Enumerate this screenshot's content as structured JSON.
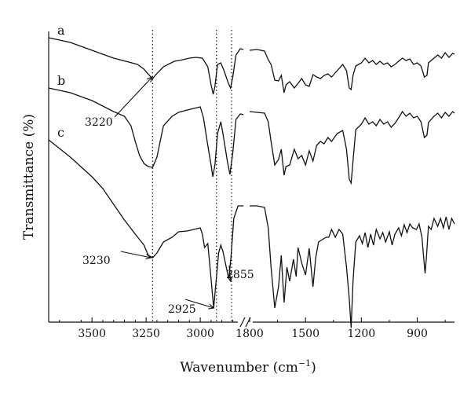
{
  "chart_data": {
    "type": "line",
    "xlabel": "Wavenumber (cm",
    "xlabel_sup": "−1",
    "xlabel_end": ")",
    "ylabel": "Transmittance (%)",
    "x_axis_break": true,
    "left_segment": {
      "xlim": [
        3700,
        2790
      ],
      "ticks": [
        3500,
        3250,
        3000
      ],
      "tick_labels": [
        "3500",
        "3250",
        "3000"
      ]
    },
    "right_segment": {
      "xlim": [
        1800,
        700
      ],
      "ticks": [
        1800,
        1500,
        1200,
        900
      ],
      "tick_labels": [
        "1800",
        "1500",
        "1200",
        "900"
      ]
    },
    "reference_lines": [
      3220,
      2925,
      2855
    ],
    "series": [
      {
        "name": "a",
        "left": [
          [
            3700,
            8
          ],
          [
            3600,
            14
          ],
          [
            3500,
            24
          ],
          [
            3400,
            34
          ],
          [
            3330,
            39
          ],
          [
            3290,
            42
          ],
          [
            3260,
            48
          ],
          [
            3235,
            56
          ],
          [
            3220,
            60
          ],
          [
            3205,
            55
          ],
          [
            3170,
            45
          ],
          [
            3120,
            38
          ],
          [
            3080,
            36
          ],
          [
            3050,
            34
          ],
          [
            3020,
            33
          ],
          [
            2990,
            34
          ],
          [
            2965,
            45
          ],
          [
            2950,
            68
          ],
          [
            2940,
            80
          ],
          [
            2932,
            70
          ],
          [
            2920,
            42
          ],
          [
            2905,
            40
          ],
          [
            2890,
            50
          ],
          [
            2870,
            66
          ],
          [
            2860,
            72
          ],
          [
            2850,
            58
          ],
          [
            2835,
            30
          ],
          [
            2815,
            22
          ],
          [
            2800,
            23
          ]
        ],
        "right": [
          [
            1800,
            24
          ],
          [
            1760,
            23
          ],
          [
            1720,
            25
          ],
          [
            1700,
            36
          ],
          [
            1685,
            42
          ],
          [
            1665,
            62
          ],
          [
            1645,
            63
          ],
          [
            1630,
            56
          ],
          [
            1615,
            78
          ],
          [
            1605,
            68
          ],
          [
            1585,
            64
          ],
          [
            1560,
            72
          ],
          [
            1540,
            66
          ],
          [
            1520,
            60
          ],
          [
            1500,
            68
          ],
          [
            1480,
            70
          ],
          [
            1460,
            55
          ],
          [
            1440,
            58
          ],
          [
            1420,
            60
          ],
          [
            1400,
            56
          ],
          [
            1380,
            54
          ],
          [
            1360,
            58
          ],
          [
            1330,
            50
          ],
          [
            1300,
            42
          ],
          [
            1280,
            50
          ],
          [
            1265,
            72
          ],
          [
            1255,
            74
          ],
          [
            1245,
            56
          ],
          [
            1230,
            44
          ],
          [
            1200,
            40
          ],
          [
            1180,
            34
          ],
          [
            1160,
            40
          ],
          [
            1140,
            37
          ],
          [
            1120,
            42
          ],
          [
            1100,
            38
          ],
          [
            1080,
            42
          ],
          [
            1060,
            40
          ],
          [
            1040,
            45
          ],
          [
            1020,
            42
          ],
          [
            1000,
            38
          ],
          [
            980,
            34
          ],
          [
            960,
            37
          ],
          [
            940,
            35
          ],
          [
            920,
            42
          ],
          [
            900,
            40
          ],
          [
            880,
            44
          ],
          [
            862,
            58
          ],
          [
            848,
            56
          ],
          [
            840,
            40
          ],
          [
            810,
            34
          ],
          [
            790,
            30
          ],
          [
            770,
            34
          ],
          [
            750,
            27
          ],
          [
            730,
            33
          ],
          [
            710,
            28
          ],
          [
            700,
            29
          ]
        ]
      },
      {
        "name": "b",
        "left": [
          [
            3700,
            72
          ],
          [
            3600,
            78
          ],
          [
            3500,
            88
          ],
          [
            3450,
            95
          ],
          [
            3400,
            102
          ],
          [
            3350,
            108
          ],
          [
            3320,
            120
          ],
          [
            3300,
            140
          ],
          [
            3280,
            158
          ],
          [
            3260,
            168
          ],
          [
            3240,
            172
          ],
          [
            3220,
            173
          ],
          [
            3200,
            160
          ],
          [
            3170,
            120
          ],
          [
            3130,
            108
          ],
          [
            3100,
            103
          ],
          [
            3060,
            100
          ],
          [
            3030,
            98
          ],
          [
            3000,
            96
          ],
          [
            2985,
            110
          ],
          [
            2965,
            145
          ],
          [
            2950,
            170
          ],
          [
            2942,
            185
          ],
          [
            2932,
            170
          ],
          [
            2920,
            130
          ],
          [
            2905,
            115
          ],
          [
            2895,
            130
          ],
          [
            2875,
            165
          ],
          [
            2863,
            182
          ],
          [
            2850,
            155
          ],
          [
            2835,
            112
          ],
          [
            2815,
            105
          ],
          [
            2800,
            106
          ]
        ],
        "right": [
          [
            1800,
            102
          ],
          [
            1760,
            103
          ],
          [
            1720,
            104
          ],
          [
            1700,
            115
          ],
          [
            1685,
            140
          ],
          [
            1665,
            170
          ],
          [
            1645,
            163
          ],
          [
            1630,
            150
          ],
          [
            1615,
            183
          ],
          [
            1605,
            172
          ],
          [
            1585,
            170
          ],
          [
            1560,
            150
          ],
          [
            1540,
            162
          ],
          [
            1520,
            158
          ],
          [
            1500,
            170
          ],
          [
            1480,
            152
          ],
          [
            1460,
            165
          ],
          [
            1440,
            145
          ],
          [
            1420,
            140
          ],
          [
            1400,
            143
          ],
          [
            1380,
            135
          ],
          [
            1360,
            140
          ],
          [
            1330,
            130
          ],
          [
            1300,
            126
          ],
          [
            1280,
            150
          ],
          [
            1265,
            188
          ],
          [
            1255,
            193
          ],
          [
            1245,
            165
          ],
          [
            1230,
            125
          ],
          [
            1200,
            118
          ],
          [
            1180,
            110
          ],
          [
            1160,
            118
          ],
          [
            1140,
            115
          ],
          [
            1120,
            120
          ],
          [
            1100,
            112
          ],
          [
            1080,
            118
          ],
          [
            1060,
            115
          ],
          [
            1040,
            122
          ],
          [
            1020,
            117
          ],
          [
            1000,
            110
          ],
          [
            980,
            102
          ],
          [
            960,
            108
          ],
          [
            940,
            104
          ],
          [
            920,
            110
          ],
          [
            900,
            108
          ],
          [
            880,
            115
          ],
          [
            862,
            135
          ],
          [
            848,
            132
          ],
          [
            840,
            116
          ],
          [
            810,
            108
          ],
          [
            790,
            104
          ],
          [
            770,
            110
          ],
          [
            750,
            103
          ],
          [
            730,
            108
          ],
          [
            710,
            102
          ],
          [
            700,
            104
          ]
        ]
      },
      {
        "name": "c",
        "left": [
          [
            3700,
            138
          ],
          [
            3600,
            160
          ],
          [
            3500,
            185
          ],
          [
            3450,
            200
          ],
          [
            3400,
            220
          ],
          [
            3350,
            240
          ],
          [
            3300,
            258
          ],
          [
            3260,
            272
          ],
          [
            3240,
            285
          ],
          [
            3220,
            288
          ],
          [
            3200,
            282
          ],
          [
            3170,
            268
          ],
          [
            3130,
            262
          ],
          [
            3100,
            255
          ],
          [
            3060,
            254
          ],
          [
            3030,
            252
          ],
          [
            3000,
            250
          ],
          [
            2990,
            258
          ],
          [
            2980,
            275
          ],
          [
            2965,
            270
          ],
          [
            2950,
            315
          ],
          [
            2938,
            352
          ],
          [
            2928,
            322
          ],
          [
            2915,
            282
          ],
          [
            2905,
            272
          ],
          [
            2895,
            280
          ],
          [
            2880,
            300
          ],
          [
            2868,
            315
          ],
          [
            2858,
            288
          ],
          [
            2845,
            238
          ],
          [
            2825,
            222
          ],
          [
            2805,
            222
          ],
          [
            2800,
            222
          ]
        ],
        "right": [
          [
            1800,
            222
          ],
          [
            1760,
            222
          ],
          [
            1720,
            224
          ],
          [
            1700,
            250
          ],
          [
            1685,
            300
          ],
          [
            1665,
            352
          ],
          [
            1645,
            325
          ],
          [
            1630,
            285
          ],
          [
            1615,
            345
          ],
          [
            1600,
            300
          ],
          [
            1585,
            318
          ],
          [
            1565,
            290
          ],
          [
            1550,
            312
          ],
          [
            1540,
            275
          ],
          [
            1520,
            295
          ],
          [
            1500,
            310
          ],
          [
            1480,
            276
          ],
          [
            1460,
            325
          ],
          [
            1445,
            288
          ],
          [
            1430,
            268
          ],
          [
            1410,
            265
          ],
          [
            1390,
            262
          ],
          [
            1375,
            262
          ],
          [
            1360,
            252
          ],
          [
            1340,
            262
          ],
          [
            1320,
            252
          ],
          [
            1300,
            258
          ],
          [
            1280,
            300
          ],
          [
            1265,
            340
          ],
          [
            1255,
            377
          ],
          [
            1245,
            318
          ],
          [
            1230,
            268
          ],
          [
            1210,
            260
          ],
          [
            1195,
            270
          ],
          [
            1180,
            256
          ],
          [
            1165,
            275
          ],
          [
            1150,
            258
          ],
          [
            1135,
            272
          ],
          [
            1120,
            252
          ],
          [
            1100,
            264
          ],
          [
            1085,
            256
          ],
          [
            1070,
            268
          ],
          [
            1050,
            255
          ],
          [
            1035,
            272
          ],
          [
            1020,
            258
          ],
          [
            1000,
            250
          ],
          [
            985,
            260
          ],
          [
            970,
            246
          ],
          [
            955,
            256
          ],
          [
            940,
            245
          ],
          [
            925,
            250
          ],
          [
            905,
            252
          ],
          [
            890,
            245
          ],
          [
            875,
            262
          ],
          [
            865,
            290
          ],
          [
            858,
            308
          ],
          [
            850,
            285
          ],
          [
            840,
            248
          ],
          [
            825,
            252
          ],
          [
            810,
            238
          ],
          [
            790,
            248
          ],
          [
            775,
            238
          ],
          [
            760,
            250
          ],
          [
            745,
            236
          ],
          [
            730,
            252
          ],
          [
            715,
            238
          ],
          [
            700,
            245
          ]
        ]
      }
    ],
    "annotations": [
      {
        "label": "3220",
        "target": [
          3222,
          58
        ]
      },
      {
        "label": "3230",
        "target": [
          3228,
          288
        ]
      },
      {
        "label": "2925",
        "target": [
          2938,
          352
        ]
      },
      {
        "label": "2855",
        "target": [
          2860,
          318
        ]
      }
    ]
  }
}
